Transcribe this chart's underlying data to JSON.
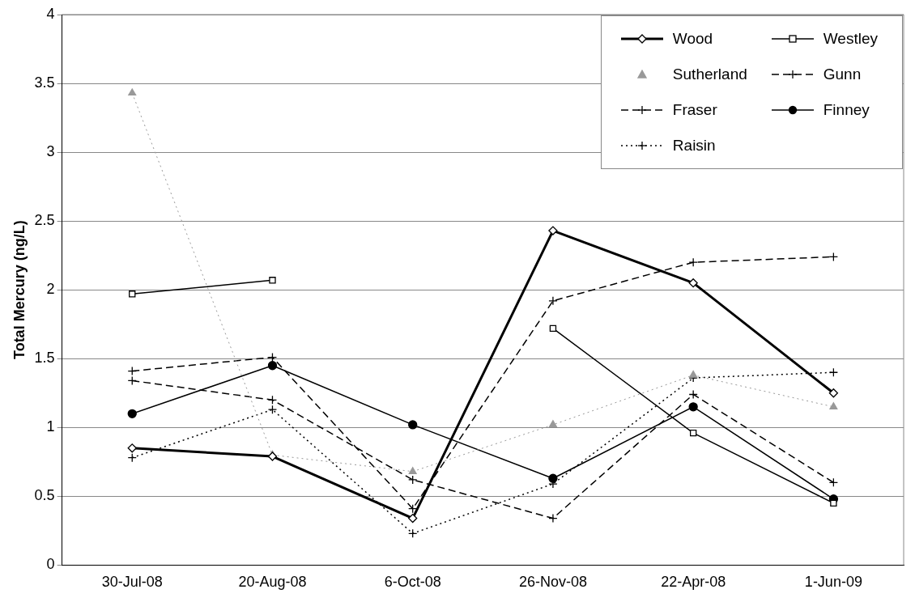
{
  "chart_data": {
    "type": "line",
    "ylabel": "Total Mercury (ng/L)",
    "categories": [
      "30-Jul-08",
      "20-Aug-08",
      "6-Oct-08",
      "26-Nov-08",
      "22-Apr-08",
      "1-Jun-09"
    ],
    "series": [
      {
        "name": "Wood",
        "color": "#000000",
        "values": [
          0.85,
          0.79,
          0.34,
          2.43,
          2.05,
          1.25
        ],
        "marker": "diamond",
        "line_style": "solid"
      },
      {
        "name": "Westley",
        "color": "#000000",
        "values": [
          1.97,
          2.07,
          null,
          1.72,
          0.96,
          0.45
        ],
        "marker": "square",
        "line_style": "solid"
      },
      {
        "name": "Sutherland",
        "color": "#999999",
        "values": [
          3.43,
          0.8,
          0.68,
          1.02,
          1.38,
          1.15
        ],
        "marker": "triangle",
        "line_style": "dotted"
      },
      {
        "name": "Gunn",
        "color": "#000000",
        "values": [
          1.34,
          1.2,
          0.62,
          0.34,
          1.24,
          0.6
        ],
        "marker": "cross",
        "line_style": "dashed"
      },
      {
        "name": "Fraser",
        "color": "#000000",
        "values": [
          1.41,
          1.51,
          0.41,
          1.92,
          2.2,
          2.24
        ],
        "marker": "cross",
        "line_style": "dashed"
      },
      {
        "name": "Finney",
        "color": "#000000",
        "values": [
          1.1,
          1.45,
          1.02,
          0.63,
          1.15,
          0.48
        ],
        "marker": "circle",
        "line_style": "solid"
      },
      {
        "name": "Raisin",
        "color": "#000000",
        "values": [
          0.78,
          1.13,
          0.23,
          0.59,
          1.36,
          1.4
        ],
        "marker": "cross",
        "line_style": "dotted"
      }
    ],
    "ylim": [
      0,
      4
    ],
    "yticks": [
      0,
      0.5,
      1,
      1.5,
      2,
      2.5,
      3,
      3.5,
      4
    ],
    "grid": "y",
    "legend": "top right"
  }
}
